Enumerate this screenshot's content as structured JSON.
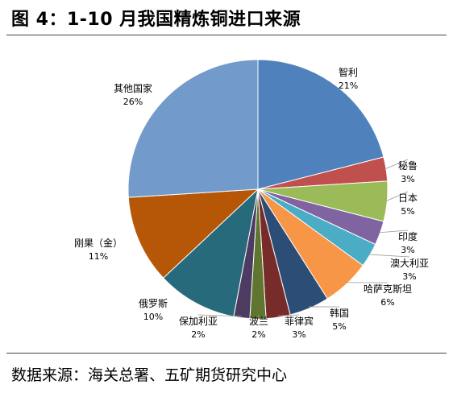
{
  "header": {
    "title": "图 4：1-10 月我国精炼铜进口来源"
  },
  "footer": {
    "source": "数据来源：海关总署、五矿期货研究中心"
  },
  "chart_data": {
    "type": "pie",
    "title": "图 4：1-10 月我国精炼铜进口来源",
    "start_angle_deg": 0,
    "direction": "clockwise",
    "slices": [
      {
        "name": "智利",
        "value": 21,
        "label": "21%",
        "color": "#4F81BD"
      },
      {
        "name": "秘鲁",
        "value": 3,
        "label": "3%",
        "color": "#C0504D"
      },
      {
        "name": "日本",
        "value": 5,
        "label": "5%",
        "color": "#9BBB59"
      },
      {
        "name": "印度",
        "value": 3,
        "label": "3%",
        "color": "#8064A2"
      },
      {
        "name": "澳大利亚",
        "value": 3,
        "label": "3%",
        "color": "#4BACC6"
      },
      {
        "name": "哈萨克斯坦",
        "value": 6,
        "label": "6%",
        "color": "#F79646"
      },
      {
        "name": "韩国",
        "value": 5,
        "label": "5%",
        "color": "#2C4D75"
      },
      {
        "name": "菲律宾",
        "value": 3,
        "label": "3%",
        "color": "#772C2A"
      },
      {
        "name": "波兰",
        "value": 2,
        "label": "2%",
        "color": "#5F7530"
      },
      {
        "name": "保加利亚",
        "value": 2,
        "label": "2%",
        "color": "#4D3B62"
      },
      {
        "name": "俄罗斯",
        "value": 10,
        "label": "10%",
        "color": "#276A7C"
      },
      {
        "name": "刚果（金）",
        "value": 11,
        "label": "11%",
        "color": "#B65708"
      },
      {
        "name": "其他国家",
        "value": 26,
        "label": "26%",
        "color": "#729ACA"
      }
    ]
  }
}
